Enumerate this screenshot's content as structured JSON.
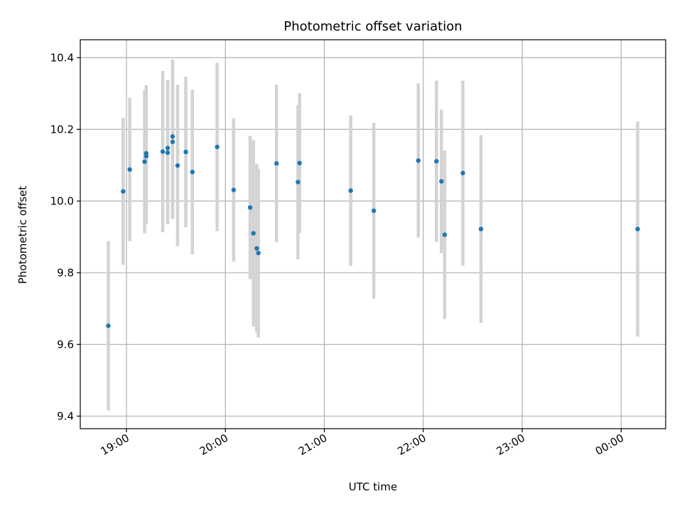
{
  "chart_data": {
    "type": "scatter",
    "title": "Photometric offset variation",
    "xlabel": "UTC time",
    "ylabel": "Photometric offset",
    "x_ticks": [
      "19:00",
      "20:00",
      "21:00",
      "22:00",
      "23:00",
      "00:00"
    ],
    "y_ticks": [
      "9.4",
      "9.6",
      "9.8",
      "10.0",
      "10.2",
      "10.4"
    ],
    "xlim": [
      "18:32",
      "00:27"
    ],
    "ylim": [
      9.365,
      10.45
    ],
    "grid": true,
    "colors": {
      "points": "#1f77b4",
      "errorbars": "#d3d3d3",
      "grid": "#b0b0b0"
    },
    "points": [
      {
        "time": "18:49",
        "y": 9.652,
        "err": 0.236
      },
      {
        "time": "18:58",
        "y": 10.027,
        "err": 0.205
      },
      {
        "time": "19:02",
        "y": 10.088,
        "err": 0.2
      },
      {
        "time": "19:11",
        "y": 10.11,
        "err": 0.2
      },
      {
        "time": "19:12",
        "y": 10.125,
        "err": 0.19
      },
      {
        "time": "19:12",
        "y": 10.133,
        "err": 0.19
      },
      {
        "time": "19:22",
        "y": 10.138,
        "err": 0.225
      },
      {
        "time": "19:25",
        "y": 10.148,
        "err": 0.19
      },
      {
        "time": "19:25",
        "y": 10.135,
        "err": 0.2
      },
      {
        "time": "19:28",
        "y": 10.18,
        "err": 0.215
      },
      {
        "time": "19:28",
        "y": 10.165,
        "err": 0.215
      },
      {
        "time": "19:31",
        "y": 10.099,
        "err": 0.225
      },
      {
        "time": "19:36",
        "y": 10.137,
        "err": 0.21
      },
      {
        "time": "19:40",
        "y": 10.081,
        "err": 0.23
      },
      {
        "time": "19:55",
        "y": 10.151,
        "err": 0.235
      },
      {
        "time": "20:05",
        "y": 10.031,
        "err": 0.2
      },
      {
        "time": "20:15",
        "y": 9.982,
        "err": 0.2
      },
      {
        "time": "20:17",
        "y": 9.91,
        "err": 0.26
      },
      {
        "time": "20:19",
        "y": 9.868,
        "err": 0.235
      },
      {
        "time": "20:20",
        "y": 9.855,
        "err": 0.235
      },
      {
        "time": "20:31",
        "y": 10.105,
        "err": 0.22
      },
      {
        "time": "20:44",
        "y": 10.053,
        "err": 0.215
      },
      {
        "time": "20:45",
        "y": 10.106,
        "err": 0.195
      },
      {
        "time": "21:16",
        "y": 10.029,
        "err": 0.21
      },
      {
        "time": "21:30",
        "y": 9.973,
        "err": 0.245
      },
      {
        "time": "21:57",
        "y": 10.113,
        "err": 0.215
      },
      {
        "time": "22:08",
        "y": 10.111,
        "err": 0.225
      },
      {
        "time": "22:11",
        "y": 10.055,
        "err": 0.2
      },
      {
        "time": "22:13",
        "y": 9.906,
        "err": 0.235
      },
      {
        "time": "22:24",
        "y": 10.078,
        "err": 0.258
      },
      {
        "time": "22:35",
        "y": 9.922,
        "err": 0.262
      },
      {
        "time": "00:10",
        "y": 9.922,
        "err": 0.3
      }
    ]
  }
}
